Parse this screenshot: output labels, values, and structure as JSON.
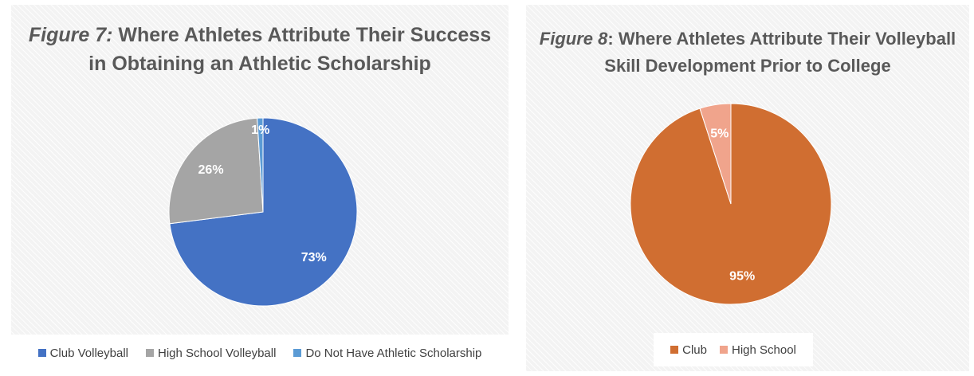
{
  "chart_data": [
    {
      "type": "pie",
      "title_prefix": "Figure 7:",
      "title_line1_rest": "Where Athletes Attribute Their Success",
      "title_line2": "in Obtaining an Athletic Scholarship",
      "slices": [
        {
          "label": "Club Volleyball",
          "value": 73,
          "display": "73%",
          "color": "#4472c4"
        },
        {
          "label": "High School Volleyball",
          "value": 26,
          "display": "26%",
          "color": "#a5a5a5"
        },
        {
          "label": "Do Not Have Athletic Scholarship",
          "value": 1,
          "display": "1%",
          "color": "#5b9bd5"
        }
      ],
      "legend_position": "bottom"
    },
    {
      "type": "pie",
      "title_prefix": "Figure 8",
      "title_line1_rest": ": Where Athletes Attribute Their Volleyball",
      "title_line2": "Skill Development Prior to College",
      "slices": [
        {
          "label": "Club",
          "value": 95,
          "display": "95%",
          "color": "#d06e31"
        },
        {
          "label": "High School",
          "value": 5,
          "display": "5%",
          "color": "#f0a48c"
        }
      ],
      "legend_position": "bottom"
    }
  ]
}
